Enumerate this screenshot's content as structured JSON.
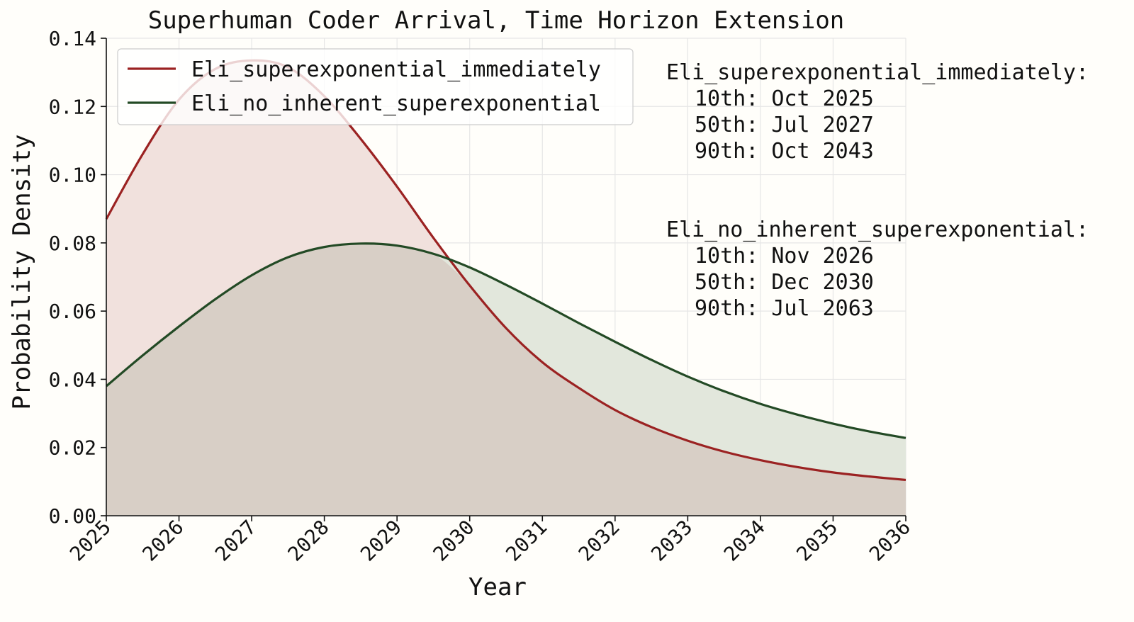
{
  "chart_data": {
    "type": "area",
    "title": "Superhuman Coder Arrival, Time Horizon Extension",
    "xlabel": "Year",
    "ylabel": "Probability Density",
    "xlim": [
      2025,
      2036
    ],
    "ylim": [
      0,
      0.14
    ],
    "xticks": [
      "2025",
      "2026",
      "2027",
      "2028",
      "2029",
      "2030",
      "2031",
      "2032",
      "2033",
      "2034",
      "2035",
      "2036"
    ],
    "yticks": [
      "0.00",
      "0.02",
      "0.04",
      "0.06",
      "0.08",
      "0.10",
      "0.12",
      "0.14"
    ],
    "grid": true,
    "legend_position": "top-left",
    "series": [
      {
        "name": "Eli_superexponential_immediately",
        "color": "#9b2222",
        "fill": "#f1e1dd",
        "x": [
          2025,
          2025.5,
          2026,
          2026.5,
          2027,
          2027.5,
          2028,
          2028.5,
          2029,
          2029.5,
          2030,
          2030.5,
          2031,
          2031.5,
          2032,
          2032.5,
          2033,
          2033.5,
          2034,
          2034.5,
          2035,
          2035.5,
          2036
        ],
        "y": [
          0.087,
          0.106,
          0.122,
          0.131,
          0.1335,
          0.1315,
          0.123,
          0.1105,
          0.0965,
          0.0815,
          0.0675,
          0.055,
          0.045,
          0.0375,
          0.031,
          0.026,
          0.022,
          0.0188,
          0.0163,
          0.0143,
          0.0127,
          0.0115,
          0.0105
        ]
      },
      {
        "name": "Eli_no_inherent_superexponential",
        "color": "#234a25",
        "fill": "#e2e7dc",
        "x": [
          2025,
          2025.5,
          2026,
          2026.5,
          2027,
          2027.5,
          2028,
          2028.5,
          2029,
          2029.5,
          2030,
          2030.5,
          2031,
          2031.5,
          2032,
          2032.5,
          2033,
          2033.5,
          2034,
          2034.5,
          2035,
          2035.5,
          2036
        ],
        "y": [
          0.038,
          0.047,
          0.0555,
          0.0635,
          0.0705,
          0.0758,
          0.0788,
          0.0798,
          0.0792,
          0.0768,
          0.0728,
          0.0677,
          0.0622,
          0.0565,
          0.051,
          0.0457,
          0.0408,
          0.0365,
          0.0328,
          0.0297,
          0.027,
          0.0247,
          0.0228
        ]
      }
    ],
    "annotations": [
      {
        "heading": "Eli_superexponential_immediately:",
        "lines": [
          "10th: Oct 2025",
          "50th: Jul 2027",
          "90th: Oct 2043"
        ]
      },
      {
        "heading": "Eli_no_inherent_superexponential:",
        "lines": [
          "10th: Nov 2026",
          "50th: Dec 2030",
          "90th: Jul 2063"
        ]
      }
    ],
    "overlap_fill": "#d8cfc6"
  }
}
